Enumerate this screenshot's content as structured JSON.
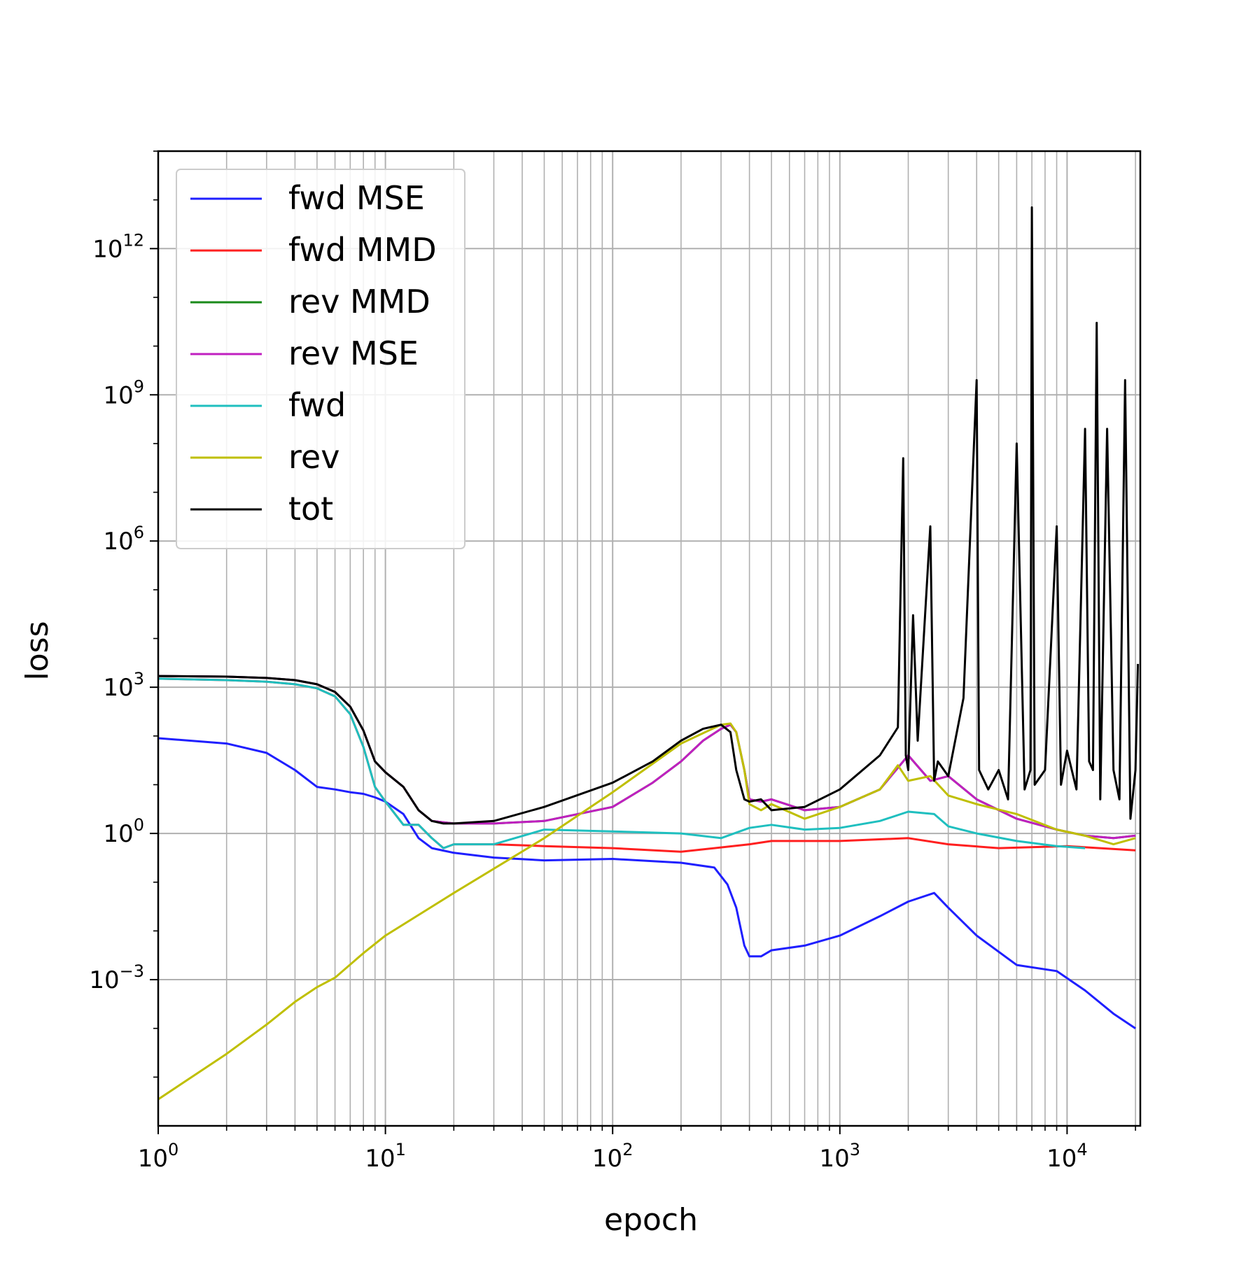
{
  "chart_data": {
    "type": "line",
    "title": "",
    "xlabel": "epoch",
    "ylabel": "loss",
    "xscale": "log",
    "yscale": "log",
    "xlim": [
      1,
      21000
    ],
    "ylim": [
      1e-06,
      100000000000000.0
    ],
    "grid": "major and minor",
    "legend_position": "top-left",
    "x_ticks": [
      {
        "value": 1,
        "mantissa": "10",
        "exponent": "0"
      },
      {
        "value": 10,
        "mantissa": "10",
        "exponent": "1"
      },
      {
        "value": 100,
        "mantissa": "10",
        "exponent": "2"
      },
      {
        "value": 1000,
        "mantissa": "10",
        "exponent": "3"
      },
      {
        "value": 10000,
        "mantissa": "10",
        "exponent": "4"
      }
    ],
    "y_ticks": [
      {
        "value": 0.001,
        "mantissa": "10",
        "exponent": "−3"
      },
      {
        "value": 1,
        "mantissa": "10",
        "exponent": "0"
      },
      {
        "value": 1000.0,
        "mantissa": "10",
        "exponent": "3"
      },
      {
        "value": 1000000.0,
        "mantissa": "10",
        "exponent": "6"
      },
      {
        "value": 1000000000.0,
        "mantissa": "10",
        "exponent": "9"
      },
      {
        "value": 1000000000000.0,
        "mantissa": "10",
        "exponent": "12"
      }
    ],
    "series": [
      {
        "name": "fwd MSE",
        "color": "#1f1fff",
        "x": [
          1,
          2,
          3,
          4,
          5,
          6,
          7,
          8,
          9,
          10,
          12,
          14,
          16,
          20,
          30,
          50,
          100,
          200,
          280,
          320,
          350,
          380,
          400,
          450,
          500,
          700,
          1000,
          1500,
          2000,
          2600,
          3000,
          4000,
          6000,
          9000,
          12000,
          16000,
          20000
        ],
        "y": [
          90,
          70,
          45,
          20,
          9,
          8,
          7,
          6.5,
          5.5,
          4.5,
          2.5,
          0.8,
          0.5,
          0.4,
          0.32,
          0.28,
          0.3,
          0.25,
          0.2,
          0.09,
          0.03,
          0.005,
          0.003,
          0.003,
          0.004,
          0.005,
          0.008,
          0.02,
          0.04,
          0.06,
          0.03,
          0.008,
          0.002,
          0.0015,
          0.0006,
          0.0002,
          0.0001
        ]
      },
      {
        "name": "fwd MMD",
        "color": "#ff1f1f",
        "x": [
          1,
          2,
          3,
          4,
          5,
          6,
          7,
          8,
          9,
          10,
          12,
          14,
          16,
          18,
          20,
          30,
          50,
          100,
          200,
          400,
          500,
          1000,
          2000,
          3000,
          5000,
          10000,
          20000
        ],
        "y": [
          1500,
          1400,
          1300,
          1150,
          950,
          650,
          280,
          60,
          9,
          4.5,
          1.5,
          1.5,
          0.8,
          0.5,
          0.6,
          0.6,
          0.55,
          0.5,
          0.42,
          0.6,
          0.7,
          0.7,
          0.8,
          0.6,
          0.5,
          0.55,
          0.45
        ]
      },
      {
        "name": "rev MMD",
        "color": "#1a8a1a",
        "x": [
          1,
          2,
          3,
          4,
          5,
          6,
          7,
          8,
          9,
          10,
          12,
          14,
          16,
          20,
          30,
          50,
          100,
          150,
          200,
          250,
          300,
          330,
          350,
          380,
          400,
          450,
          500,
          700,
          1000,
          1500,
          2000,
          2500,
          3000,
          4000,
          6000,
          9000,
          12000,
          16000,
          20000
        ],
        "y": [
          1700,
          1650,
          1550,
          1400,
          1150,
          800,
          400,
          130,
          30,
          18,
          9,
          3,
          1.8,
          1.6,
          1.6,
          1.8,
          3.5,
          11,
          30,
          80,
          140,
          170,
          120,
          20,
          5,
          4.5,
          5,
          3,
          3.5,
          8,
          40,
          12,
          15,
          5,
          2,
          1.2,
          0.9,
          0.8,
          0.9
        ]
      },
      {
        "name": "rev MSE",
        "color": "#c01fc0",
        "x": [
          1,
          2,
          3,
          4,
          5,
          6,
          7,
          8,
          9,
          10,
          12,
          14,
          16,
          20,
          30,
          50,
          100,
          150,
          200,
          250,
          300,
          330,
          350,
          380,
          400,
          450,
          500,
          700,
          1000,
          1500,
          2000,
          2500,
          3000,
          4000,
          6000,
          9000,
          12000,
          16000,
          20000
        ],
        "y": [
          1700,
          1650,
          1550,
          1400,
          1150,
          800,
          400,
          130,
          30,
          18,
          9,
          3,
          1.8,
          1.6,
          1.6,
          1.8,
          3.5,
          11,
          30,
          80,
          140,
          170,
          120,
          20,
          5,
          4.5,
          5,
          3,
          3.5,
          8,
          40,
          12,
          15,
          5,
          2,
          1.2,
          0.9,
          0.8,
          0.9
        ]
      },
      {
        "name": "fwd",
        "color": "#1fbfbf",
        "x": [
          1,
          2,
          3,
          4,
          5,
          6,
          7,
          8,
          9,
          10,
          12,
          14,
          16,
          18,
          20,
          30,
          50,
          100,
          200,
          300,
          400,
          500,
          700,
          1000,
          1500,
          2000,
          2600,
          3000,
          4000,
          6000,
          9000,
          12000
        ],
        "y": [
          1500,
          1400,
          1300,
          1150,
          950,
          650,
          280,
          60,
          9,
          4.5,
          1.5,
          1.5,
          0.8,
          0.5,
          0.6,
          0.6,
          1.2,
          1.1,
          1.0,
          0.8,
          1.3,
          1.5,
          1.2,
          1.3,
          1.8,
          2.8,
          2.5,
          1.4,
          1.0,
          0.7,
          0.55,
          0.5
        ]
      },
      {
        "name": "rev",
        "color": "#bfbf00",
        "x": [
          1,
          2,
          3,
          4,
          5,
          6,
          8,
          10,
          20,
          50,
          100,
          200,
          300,
          330,
          350,
          380,
          400,
          450,
          500,
          700,
          1000,
          1500,
          1800,
          2000,
          2500,
          3000,
          4000,
          6000,
          9000,
          12000,
          16000,
          20000
        ],
        "y": [
          3.5e-06,
          3e-05,
          0.00012,
          0.00035,
          0.0007,
          0.0011,
          0.0035,
          0.008,
          0.06,
          0.8,
          7,
          70,
          170,
          180,
          120,
          20,
          4,
          3,
          4,
          2,
          3.5,
          8,
          25,
          12,
          15,
          6,
          4,
          2.5,
          1.2,
          0.9,
          0.6,
          0.8
        ]
      },
      {
        "name": "tot",
        "color": "#000000",
        "x": [
          1,
          2,
          3,
          4,
          5,
          6,
          7,
          8,
          9,
          10,
          12,
          14,
          16,
          18,
          20,
          30,
          50,
          100,
          150,
          200,
          250,
          300,
          330,
          350,
          380,
          400,
          450,
          500,
          700,
          1000,
          1500,
          1800,
          1900,
          1950,
          2000,
          2100,
          2200,
          2500,
          2600,
          2700,
          3000,
          3500,
          4000,
          4100,
          4500,
          5000,
          5500,
          6000,
          6500,
          6900,
          7000,
          7200,
          8000,
          9000,
          9400,
          10000,
          11000,
          12000,
          12500,
          13000,
          13500,
          14000,
          15000,
          16000,
          17000,
          18000,
          19000,
          20000,
          20500
        ],
        "y": [
          1700,
          1650,
          1550,
          1400,
          1150,
          800,
          400,
          130,
          30,
          18,
          9,
          3,
          1.8,
          1.6,
          1.6,
          1.8,
          3.5,
          11,
          30,
          80,
          140,
          170,
          120,
          20,
          5,
          4.5,
          5,
          3,
          3.5,
          8,
          40,
          150,
          50000000,
          40,
          20,
          30000,
          80,
          2000000,
          12,
          30,
          15,
          600,
          2000000000,
          20,
          8,
          20,
          5,
          100000000,
          8,
          20,
          7000000000000,
          10,
          20,
          2000000,
          10,
          50,
          8,
          200000000,
          30,
          20,
          30000000000,
          5,
          200000000,
          20,
          5,
          2000000000,
          2,
          20,
          3000
        ]
      }
    ]
  }
}
